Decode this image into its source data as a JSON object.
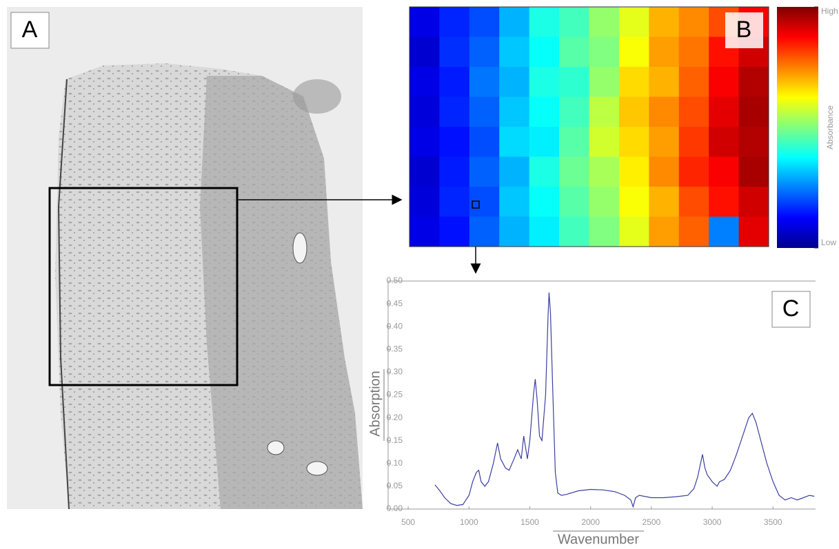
{
  "image": {
    "panel_label": "A"
  },
  "chart_data": [
    {
      "type": "heatmap",
      "panel_label": "B",
      "colorbar_label": "Absorbance",
      "zlim": [
        0,
        1
      ],
      "zticks": [
        {
          "value": 1,
          "label": "High"
        },
        {
          "value": 0,
          "label": "Low"
        }
      ],
      "values": [
        [
          0.1,
          0.16,
          0.2,
          0.3,
          0.4,
          0.44,
          0.52,
          0.6,
          0.7,
          0.74,
          0.8,
          0.88
        ],
        [
          0.08,
          0.17,
          0.22,
          0.32,
          0.38,
          0.46,
          0.5,
          0.62,
          0.72,
          0.76,
          0.86,
          0.92
        ],
        [
          0.1,
          0.15,
          0.24,
          0.3,
          0.4,
          0.42,
          0.52,
          0.66,
          0.7,
          0.78,
          0.88,
          0.95
        ],
        [
          0.09,
          0.16,
          0.22,
          0.32,
          0.38,
          0.44,
          0.56,
          0.68,
          0.74,
          0.8,
          0.9,
          0.96
        ],
        [
          0.1,
          0.14,
          0.2,
          0.34,
          0.36,
          0.46,
          0.58,
          0.66,
          0.72,
          0.82,
          0.92,
          0.95
        ],
        [
          0.08,
          0.15,
          0.22,
          0.3,
          0.4,
          0.48,
          0.54,
          0.64,
          0.74,
          0.84,
          0.88,
          0.96
        ],
        [
          0.09,
          0.16,
          0.2,
          0.32,
          0.38,
          0.46,
          0.52,
          0.62,
          0.7,
          0.8,
          0.86,
          0.92
        ],
        [
          0.1,
          0.14,
          0.22,
          0.3,
          0.36,
          0.44,
          0.5,
          0.6,
          0.72,
          0.78,
          0.25,
          0.9
        ]
      ]
    },
    {
      "type": "line",
      "panel_label": "C",
      "xlabel": "Wavenumber",
      "ylabel": "Absorption",
      "color": "#3a3fa0",
      "xlim": [
        335,
        3850
      ],
      "xticks": [
        500,
        1000,
        1500,
        2000,
        2500,
        3000,
        3500
      ],
      "ylim": [
        0,
        0.5
      ],
      "yticks": [
        {
          "value": 0,
          "label": "0.00"
        },
        {
          "value": 0.05,
          "label": "0.05"
        },
        {
          "value": 0.1,
          "label": "0.10"
        },
        {
          "value": 0.15,
          "label": "0.15"
        },
        {
          "value": 0.2,
          "label": "0.20"
        },
        {
          "value": 0.25,
          "label": "0.25"
        },
        {
          "value": 0.3,
          "label": "0.30"
        },
        {
          "value": 0.35,
          "label": "0.35"
        },
        {
          "value": 0.4,
          "label": "0.40"
        },
        {
          "value": 0.45,
          "label": "0.45"
        },
        {
          "value": 0.5,
          "label": "0.50"
        }
      ],
      "x": [
        720,
        760,
        800,
        850,
        900,
        950,
        1000,
        1030,
        1060,
        1080,
        1100,
        1130,
        1160,
        1200,
        1235,
        1260,
        1300,
        1330,
        1370,
        1400,
        1430,
        1450,
        1480,
        1500,
        1530,
        1545,
        1560,
        1580,
        1600,
        1630,
        1650,
        1658,
        1670,
        1690,
        1710,
        1730,
        1760,
        1800,
        1900,
        2000,
        2100,
        2200,
        2280,
        2330,
        2350,
        2370,
        2400,
        2500,
        2600,
        2700,
        2800,
        2850,
        2880,
        2920,
        2940,
        2960,
        3000,
        3040,
        3060,
        3100,
        3150,
        3200,
        3250,
        3300,
        3330,
        3360,
        3400,
        3450,
        3500,
        3550,
        3600,
        3650,
        3700,
        3750,
        3800,
        3840
      ],
      "values": [
        0.053,
        0.04,
        0.025,
        0.012,
        0.008,
        0.01,
        0.03,
        0.06,
        0.08,
        0.085,
        0.06,
        0.05,
        0.06,
        0.1,
        0.145,
        0.11,
        0.09,
        0.085,
        0.11,
        0.13,
        0.11,
        0.16,
        0.11,
        0.15,
        0.25,
        0.285,
        0.24,
        0.16,
        0.15,
        0.25,
        0.42,
        0.475,
        0.43,
        0.25,
        0.08,
        0.035,
        0.03,
        0.032,
        0.04,
        0.043,
        0.042,
        0.038,
        0.03,
        0.02,
        0.005,
        0.025,
        0.03,
        0.025,
        0.025,
        0.027,
        0.03,
        0.045,
        0.07,
        0.12,
        0.09,
        0.075,
        0.06,
        0.05,
        0.06,
        0.065,
        0.085,
        0.12,
        0.16,
        0.2,
        0.21,
        0.19,
        0.15,
        0.1,
        0.06,
        0.03,
        0.02,
        0.025,
        0.02,
        0.025,
        0.03,
        0.028
      ]
    }
  ]
}
